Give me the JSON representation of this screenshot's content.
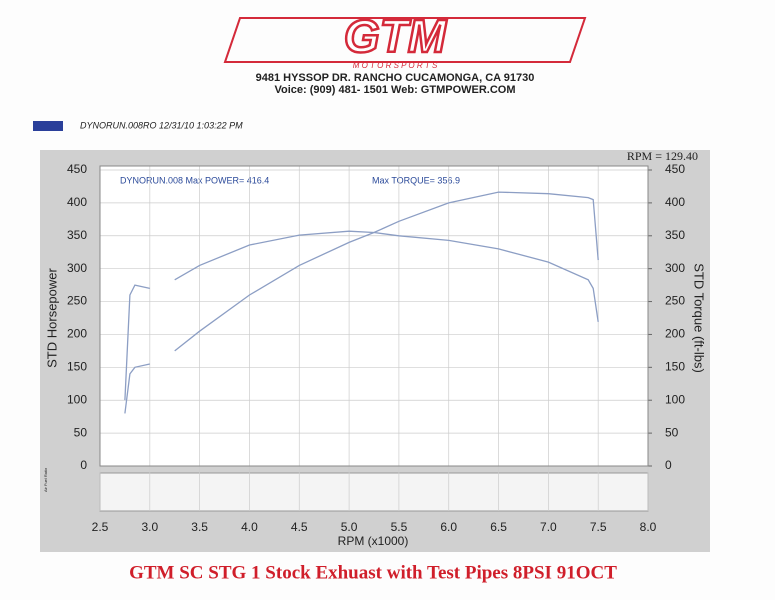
{
  "header": {
    "logo": "GTM",
    "logo_sub": "M O T O R S P O R T S",
    "address": "9481 HYSSOP DR. RANCHO CUCAMONGA, CA 91730",
    "contact": "Voice: (909) 481- 1501      Web: GTMPOWER.COM"
  },
  "chart_data": {
    "type": "line",
    "title": "GTM SC STG 1 Stock Exhuast with Test Pipes 8PSI 91OCT",
    "run_label": "DYNORUN.008RO  12/31/10 1:03:22 PM",
    "legend_color": "#2a3f9a",
    "annotations": [
      "DYNORUN.008  Max POWER= 416.4",
      "Max TORQUE= 356.9",
      "RPM = 129.40"
    ],
    "x_label": "RPM (x1000)",
    "y_label": "STD Horsepower",
    "y2_label": "STD Torque (ft-lbs)",
    "x": [
      2.75,
      2.8,
      2.85,
      3.0,
      3.1,
      3.25,
      3.5,
      4.0,
      4.5,
      5.0,
      5.25,
      5.5,
      6.0,
      6.5,
      7.0,
      7.4,
      7.45,
      7.5
    ],
    "series": [
      {
        "name": "STD Horsepower",
        "color": "#8c9ec4",
        "values": [
          80,
          140,
          150,
          155,
          null,
          175,
          205,
          260,
          305,
          340,
          355,
          372,
          400,
          416.4,
          414,
          408,
          405,
          313
        ]
      },
      {
        "name": "STD Torque",
        "color": "#8c9ec4",
        "axis": "y2",
        "values": [
          100,
          260,
          275,
          270,
          null,
          283,
          305,
          336,
          351,
          356.9,
          355,
          350,
          343,
          330,
          310,
          283,
          270,
          219
        ]
      }
    ],
    "xlim": [
      2.5,
      8.0
    ],
    "xticks": [
      2.5,
      {
        "value": 3,
        "label": "3.0"
      },
      3.5,
      {
        "value": 4,
        "label": "4.0"
      },
      4.5,
      {
        "value": 5,
        "label": "5.0"
      },
      5.5,
      {
        "value": 6,
        "label": "6.0"
      },
      6.5,
      {
        "value": 7,
        "label": "7.0"
      },
      7.5,
      {
        "value": 8,
        "label": "8.0"
      }
    ],
    "ylim": [
      0,
      450
    ],
    "yticks": [
      0,
      50,
      100,
      150,
      200,
      250,
      300,
      350,
      400,
      450
    ],
    "y2lim": [
      0,
      450
    ],
    "y2ticks": [
      0,
      50,
      100,
      150,
      200,
      250,
      300,
      350,
      400,
      450
    ],
    "grid": true
  }
}
